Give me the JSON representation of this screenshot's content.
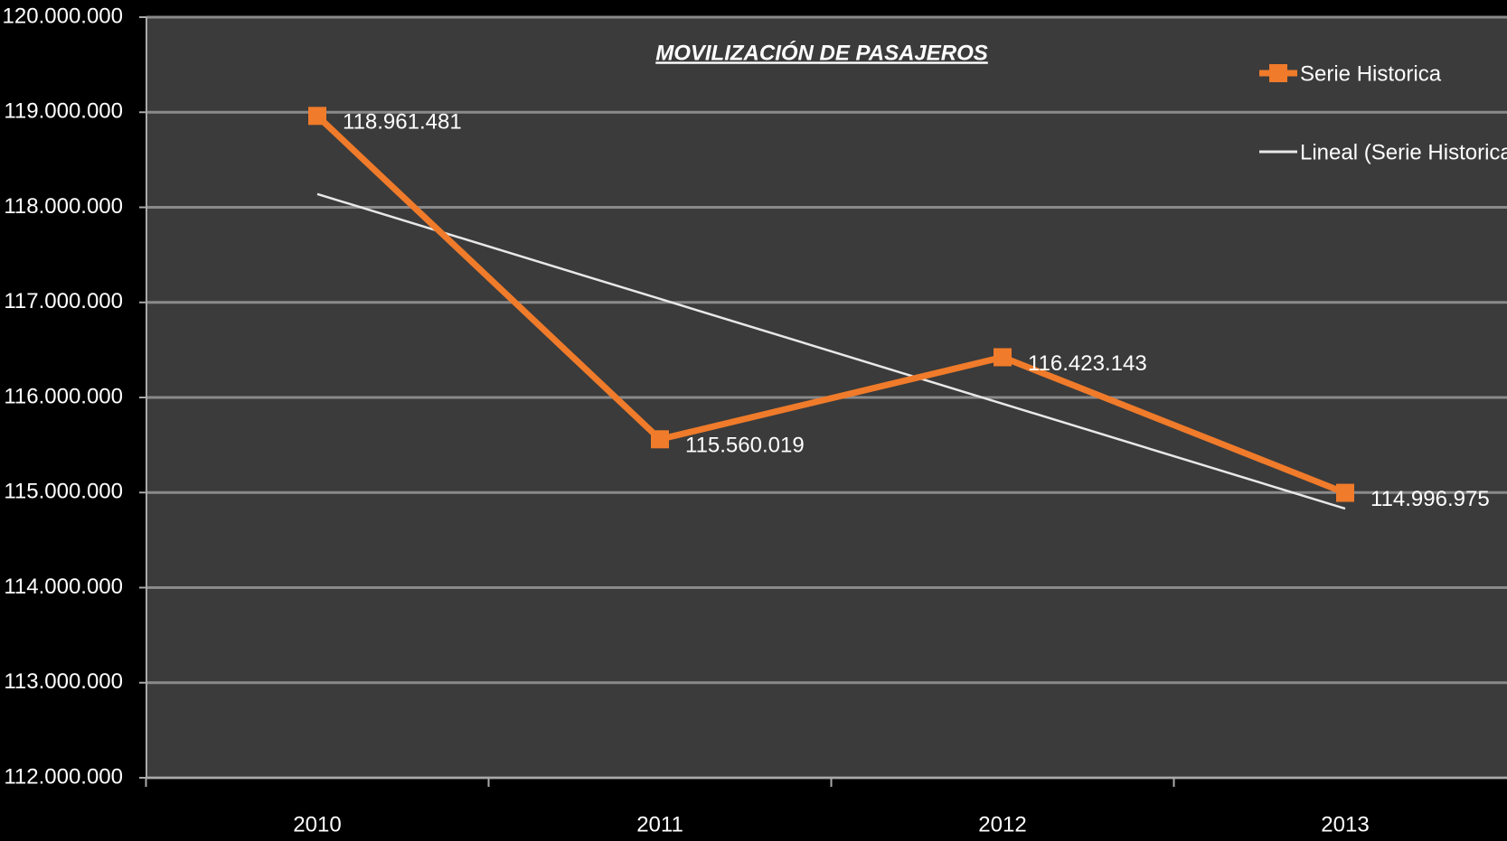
{
  "chart_data": {
    "type": "line",
    "title": "MOVILIZACIÓN DE PASAJEROS",
    "categories": [
      "2010",
      "2011",
      "2012",
      "2013"
    ],
    "series": [
      {
        "name": "Serie Historica",
        "color": "#f07b2a",
        "values": [
          118961481,
          115560019,
          116423143,
          114996975
        ],
        "value_labels": [
          "118.961.481",
          "115.560.019",
          "116.423.143",
          "114.996.975"
        ],
        "marker": "square"
      },
      {
        "name": "Lineal (Serie Historica)",
        "color": "#e8e8e8",
        "values": [
          118140000,
          117037000,
          115934000,
          114831000
        ]
      }
    ],
    "ylim": [
      112000000,
      120000000
    ],
    "yticks": [
      {
        "value": 112000000,
        "label": "112.000.000"
      },
      {
        "value": 113000000,
        "label": "113.000.000"
      },
      {
        "value": 114000000,
        "label": "114.000.000"
      },
      {
        "value": 115000000,
        "label": "115.000.000"
      },
      {
        "value": 116000000,
        "label": "116.000.000"
      },
      {
        "value": 117000000,
        "label": "117.000.000"
      },
      {
        "value": 118000000,
        "label": "118.000.000"
      },
      {
        "value": 119000000,
        "label": "119.000.000"
      },
      {
        "value": 120000000,
        "label": "120.000.000"
      }
    ],
    "grid": true,
    "legend": "top-right"
  }
}
